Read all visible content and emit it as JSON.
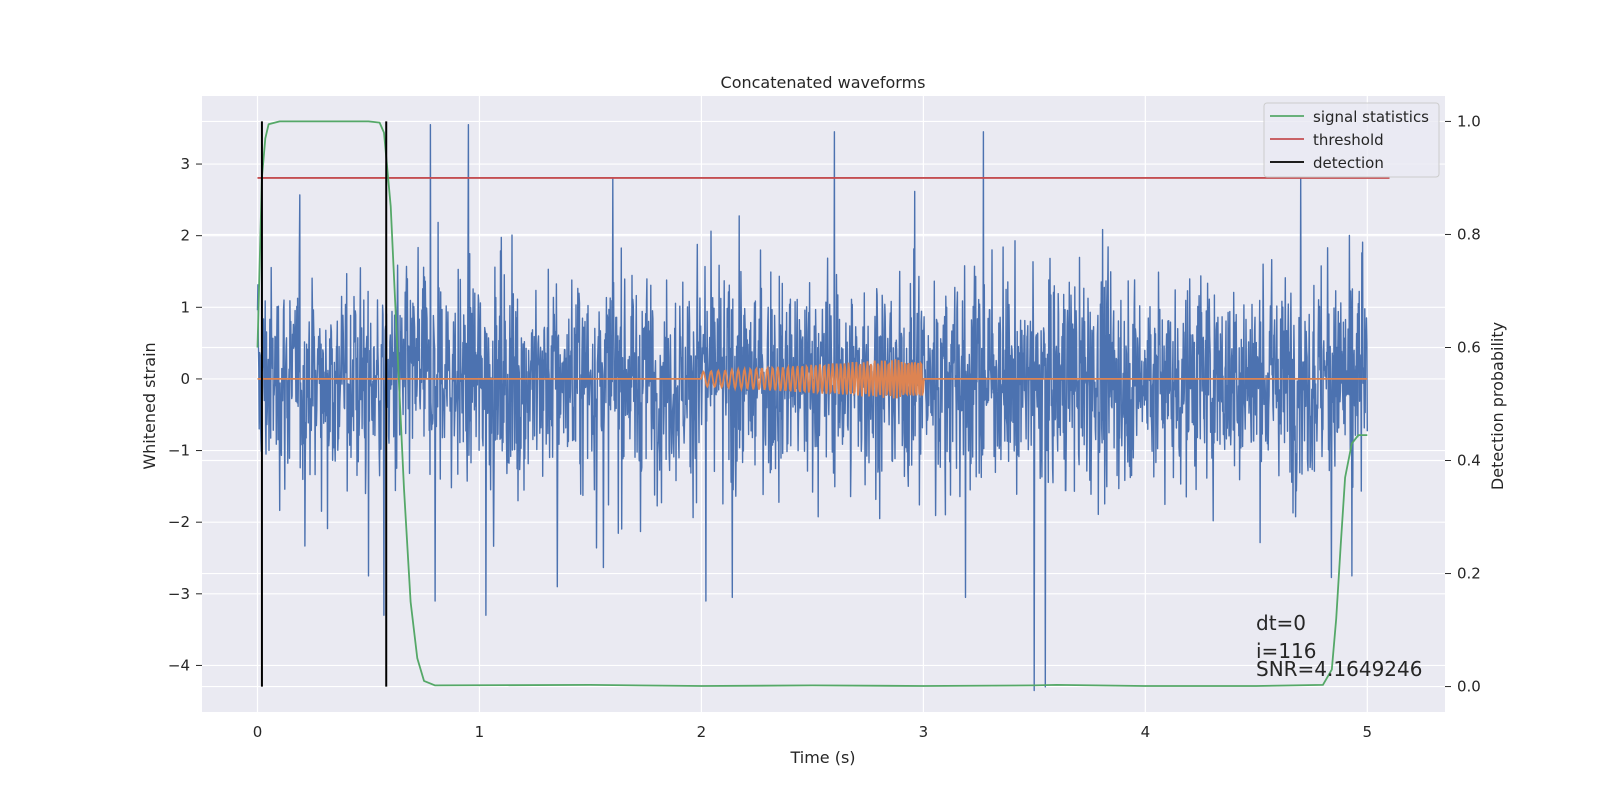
{
  "chart_data": {
    "type": "line",
    "title": "Concatenated waveforms",
    "xlabel": "Time (s)",
    "ylabel": "Whitened strain",
    "y2label": "Detection probability",
    "xlim": [
      -0.25,
      5.35
    ],
    "ylim": [
      -4.65,
      3.95
    ],
    "y2lim": [
      -0.045,
      1.045
    ],
    "xticks": [
      0,
      1,
      2,
      3,
      4,
      5
    ],
    "yticks": [
      -4,
      -3,
      -2,
      -1,
      0,
      1,
      2,
      3
    ],
    "y2ticks": [
      0.0,
      0.2,
      0.4,
      0.6,
      0.8,
      1.0
    ],
    "y2tick_labels": [
      "0.0",
      "0.2",
      "0.4",
      "0.6",
      "0.8",
      "1.0"
    ],
    "ytick_labels": [
      "−4",
      "−3",
      "−2",
      "−1",
      "0",
      "1",
      "2",
      "3"
    ],
    "grid": true,
    "legend_position": "top-right",
    "series": [
      {
        "name": "",
        "axis": "left",
        "color": "#4c72b0",
        "kind": "whitened-strain-noise",
        "x_range": [
          0,
          5
        ],
        "typical_amplitude": 1.2,
        "spikes": [
          {
            "x": 0.78,
            "y": 3.55
          },
          {
            "x": 0.95,
            "y": 3.55
          },
          {
            "x": 1.6,
            "y": 2.8
          },
          {
            "x": 2.6,
            "y": 3.45
          },
          {
            "x": 3.27,
            "y": 3.45
          },
          {
            "x": 4.7,
            "y": 2.8
          },
          {
            "x": 3.5,
            "y": -4.35
          },
          {
            "x": 3.55,
            "y": -4.3
          },
          {
            "x": 0.57,
            "y": -3.3
          },
          {
            "x": 1.03,
            "y": -3.3
          },
          {
            "x": 0.8,
            "y": -3.1
          },
          {
            "x": 2.02,
            "y": -3.1
          },
          {
            "x": 2.14,
            "y": -3.05
          },
          {
            "x": 3.19,
            "y": -3.05
          },
          {
            "x": 0.5,
            "y": -2.75
          },
          {
            "x": 1.35,
            "y": -2.9
          },
          {
            "x": 4.93,
            "y": -2.75
          }
        ]
      },
      {
        "name": "",
        "axis": "left",
        "color": "#dd8452",
        "kind": "chirp",
        "baseline": {
          "x": [
            0,
            5
          ],
          "y": 0
        },
        "chirp_x_range": [
          2,
          3
        ],
        "amplitude_start": 0.1,
        "amplitude_end": 0.3
      },
      {
        "name": "signal statistics",
        "axis": "right",
        "color": "#55a868",
        "x": [
          0,
          0.01,
          0.02,
          0.035,
          0.05,
          0.1,
          0.3,
          0.5,
          0.55,
          0.57,
          0.6,
          0.63,
          0.66,
          0.69,
          0.72,
          0.75,
          0.8,
          1.5,
          2.0,
          2.5,
          3.0,
          3.5,
          3.6,
          4.0,
          4.5,
          4.8,
          4.84,
          4.86,
          4.88,
          4.9,
          4.93,
          4.96,
          5.0
        ],
        "y": [
          0.6,
          0.75,
          0.9,
          0.97,
          0.995,
          1.0,
          1.0,
          1.0,
          0.998,
          0.98,
          0.85,
          0.6,
          0.35,
          0.15,
          0.05,
          0.01,
          0.002,
          0.003,
          0.001,
          0.002,
          0.001,
          0.002,
          0.003,
          0.001,
          0.001,
          0.003,
          0.03,
          0.12,
          0.25,
          0.37,
          0.43,
          0.445,
          0.445
        ]
      },
      {
        "name": "threshold",
        "axis": "right",
        "color": "#c44e52",
        "x": [
          0,
          5.1
        ],
        "y": [
          0.9,
          0.9
        ]
      },
      {
        "name": "detection",
        "axis": "right",
        "color": "#000000",
        "vlines": [
          0.02,
          0.58
        ],
        "ymin": 0,
        "ymax": 1
      }
    ],
    "annotations": {
      "dt": "dt=0",
      "i": "i=116",
      "snr": "SNR=4.1649246"
    }
  }
}
